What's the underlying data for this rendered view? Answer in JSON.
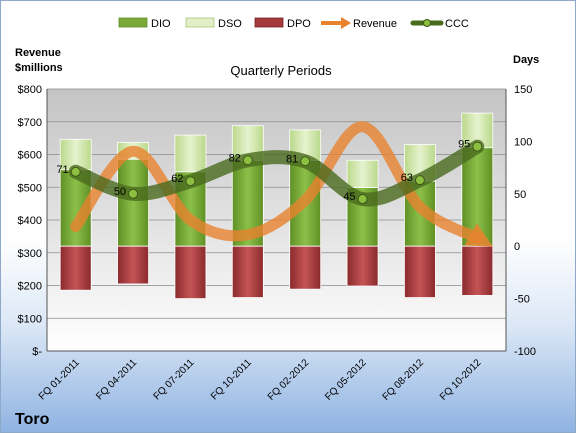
{
  "chart_data": {
    "type": "bar",
    "title": "Quarterly Periods",
    "company": "Toro",
    "left_axis": {
      "label_line1": "Revenue",
      "label_line2": "$millions",
      "min": 0,
      "max": 800,
      "step": 100,
      "ticks": [
        "$-",
        "$100",
        "$200",
        "$300",
        "$400",
        "$500",
        "$600",
        "$700",
        "$800"
      ]
    },
    "right_axis": {
      "label": "Days",
      "min": -100,
      "max": 150,
      "step": 50,
      "ticks": [
        "-100",
        "-50",
        "0",
        "50",
        "100",
        "150"
      ]
    },
    "categories": [
      "FQ 01-2011",
      "FQ 04-2011",
      "FQ 07-2011",
      "FQ 10-2011",
      "FQ 02-2012",
      "FQ 05-2012",
      "FQ 08-2012",
      "FQ 10-2012"
    ],
    "legend": {
      "position": "top",
      "items": [
        "DIO",
        "DSO",
        "DPO",
        "Revenue",
        "CCC"
      ]
    },
    "series": [
      {
        "name": "DIO",
        "axis": "right",
        "values": [
          73,
          83,
          71,
          82,
          82,
          56,
          62,
          94
        ],
        "color": "#7aa93a"
      },
      {
        "name": "DSO",
        "axis": "right",
        "values": [
          29,
          16,
          35,
          33,
          29,
          26,
          35,
          33
        ],
        "color": "#cfe5a8"
      },
      {
        "name": "DPO",
        "axis": "right",
        "values": [
          -42,
          -36,
          -50,
          -49,
          -41,
          -38,
          -49,
          -47
        ],
        "color": "#a33a3c"
      },
      {
        "name": "Revenue",
        "axis": "left",
        "values": [
          380,
          610,
          400,
          355,
          460,
          685,
          440,
          345
        ],
        "color": "#e8822e"
      },
      {
        "name": "CCC",
        "axis": "right",
        "values": [
          71,
          50,
          62,
          82,
          81,
          45,
          63,
          95
        ],
        "color": "#4a6a1e"
      }
    ],
    "grid": true
  }
}
